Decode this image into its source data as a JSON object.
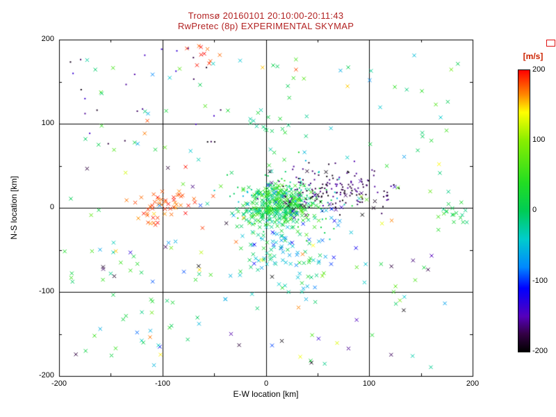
{
  "figure": {
    "title_line1": "Tromsø 20160101 20:10:00-20:11:43",
    "title_line2": "RwPretec (8p) EXPERIMENTAL SKYMAP",
    "title_color": "#b22222",
    "background": "#ffffff",
    "corner_marker_color": "#e01010"
  },
  "axes": {
    "xlabel": "E-W location [km]",
    "ylabel": "N-S location [km]",
    "x_tick_labels": [
      "-200",
      "-100",
      "0",
      "100",
      "200"
    ],
    "y_tick_labels": [
      "200",
      "100",
      "0",
      "-100",
      "-200"
    ]
  },
  "colorbar": {
    "label": "[m/s]",
    "label_color": "#cc2200",
    "tick_labels": [
      "200",
      "100",
      "0",
      "-100",
      "-200"
    ],
    "range": [
      -200,
      200
    ],
    "stops": [
      {
        "v": 200,
        "c": "#ff0000"
      },
      {
        "v": 165,
        "c": "#ff8800"
      },
      {
        "v": 140,
        "c": "#ffff00"
      },
      {
        "v": 100,
        "c": "#88ee00"
      },
      {
        "v": 40,
        "c": "#22dd22"
      },
      {
        "v": 0,
        "c": "#00cc55"
      },
      {
        "v": -40,
        "c": "#00cccc"
      },
      {
        "v": -80,
        "c": "#0088ff"
      },
      {
        "v": -110,
        "c": "#0000ff"
      },
      {
        "v": -150,
        "c": "#5500bb"
      },
      {
        "v": -175,
        "c": "#330044"
      },
      {
        "v": -200,
        "c": "#000000"
      }
    ]
  },
  "chart_data": {
    "type": "scatter",
    "title": "Tromsø 20160101 20:10:00-20:11:43 — RwPretec (8p) EXPERIMENTAL SKYMAP",
    "xlabel": "E-W location [km]",
    "ylabel": "N-S location [km]",
    "xlim": [
      -200,
      200
    ],
    "ylim": [
      -200,
      200
    ],
    "x_ticks": [
      -200,
      -100,
      0,
      100,
      200
    ],
    "y_ticks": [
      -200,
      -100,
      0,
      100,
      200
    ],
    "grid": true,
    "grid_lines": [
      -100,
      0,
      100
    ],
    "colorbar_label": "[m/s]",
    "colorbar_range": [
      -200,
      200
    ],
    "marker_types": [
      "x",
      "dot"
    ],
    "clusters": [
      {
        "name": "central-dense-green-x",
        "cx": 12,
        "cy": 3,
        "sx": 16,
        "sy": 13,
        "n": 320,
        "marker": "x",
        "vmin": -30,
        "vmax": 70,
        "dist": "gauss"
      },
      {
        "name": "central-green-dots",
        "cx": 18,
        "cy": 8,
        "sx": 28,
        "sy": 20,
        "n": 110,
        "marker": "dot",
        "vmin": -60,
        "vmax": 60,
        "dist": "gauss"
      },
      {
        "name": "south-green-cyan-x",
        "cx": 15,
        "cy": -50,
        "sx": 22,
        "sy": 28,
        "n": 90,
        "marker": "x",
        "vmin": -70,
        "vmax": 40,
        "dist": "gauss"
      },
      {
        "name": "east-dark-dot-stream",
        "cx": 68,
        "cy": 22,
        "sx": 26,
        "sy": 13,
        "n": 150,
        "marker": "dot",
        "vmin": -200,
        "vmax": -150,
        "dist": "gauss"
      },
      {
        "name": "east-dark-x",
        "cx": 72,
        "cy": 4,
        "sx": 28,
        "sy": 14,
        "n": 22,
        "marker": "x",
        "vmin": -200,
        "vmax": -120,
        "dist": "gauss"
      },
      {
        "name": "west-red-x",
        "cx": -93,
        "cy": 5,
        "sx": 16,
        "sy": 8,
        "n": 38,
        "marker": "x",
        "vmin": 160,
        "vmax": 200,
        "dist": "gauss"
      },
      {
        "name": "west-red-x-lower",
        "cx": -114,
        "cy": -13,
        "sx": 9,
        "sy": 6,
        "n": 13,
        "marker": "x",
        "vmin": 150,
        "vmax": 200,
        "dist": "gauss"
      },
      {
        "name": "north-red-x",
        "cx": -62,
        "cy": 183,
        "sx": 11,
        "sy": 7,
        "n": 10,
        "marker": "x",
        "vmin": 170,
        "vmax": 200,
        "dist": "gauss"
      },
      {
        "name": "east-edge-green-x",
        "cx": 183,
        "cy": -8,
        "sx": 9,
        "sy": 10,
        "n": 18,
        "marker": "x",
        "vmin": -20,
        "vmax": 60,
        "dist": "gauss"
      },
      {
        "name": "north-green-string",
        "cx": 5,
        "cy": 95,
        "sx": 14,
        "sy": 35,
        "n": 24,
        "marker": "x",
        "vmin": -40,
        "vmax": 40,
        "dist": "gauss"
      },
      {
        "name": "wide-green-cyan-scatter",
        "cx": 0,
        "cy": 0,
        "sx": 190,
        "sy": 190,
        "n": 130,
        "marker": "x",
        "vmin": -90,
        "vmax": 90,
        "dist": "uniform"
      },
      {
        "name": "northwest-dark-dots",
        "cx": -115,
        "cy": 130,
        "sx": 75,
        "sy": 60,
        "n": 28,
        "marker": "dot",
        "vmin": -200,
        "vmax": -120,
        "dist": "uniform"
      },
      {
        "name": "scattered-black-x",
        "cx": 0,
        "cy": -70,
        "sx": 185,
        "sy": 125,
        "n": 24,
        "marker": "x",
        "vmin": -200,
        "vmax": -160,
        "dist": "uniform"
      },
      {
        "name": "scattered-red-x",
        "cx": -30,
        "cy": 20,
        "sx": 160,
        "sy": 150,
        "n": 12,
        "marker": "x",
        "vmin": 150,
        "vmax": 200,
        "dist": "uniform"
      },
      {
        "name": "central-south-cyan-blue",
        "cx": 28,
        "cy": -32,
        "sx": 30,
        "sy": 28,
        "n": 40,
        "marker": "x",
        "vmin": -120,
        "vmax": -40,
        "dist": "gauss"
      },
      {
        "name": "scattered-yellow-orange",
        "cx": 0,
        "cy": -60,
        "sx": 170,
        "sy": 120,
        "n": 14,
        "marker": "x",
        "vmin": 100,
        "vmax": 170,
        "dist": "uniform"
      },
      {
        "name": "scattered-blue-x",
        "cx": 20,
        "cy": -90,
        "sx": 160,
        "sy": 95,
        "n": 12,
        "marker": "x",
        "vmin": -160,
        "vmax": -90,
        "dist": "uniform"
      },
      {
        "name": "southwest-green-sparse",
        "cx": -140,
        "cy": -120,
        "sx": 55,
        "sy": 70,
        "n": 20,
        "marker": "x",
        "vmin": -60,
        "vmax": 60,
        "dist": "uniform"
      }
    ]
  }
}
